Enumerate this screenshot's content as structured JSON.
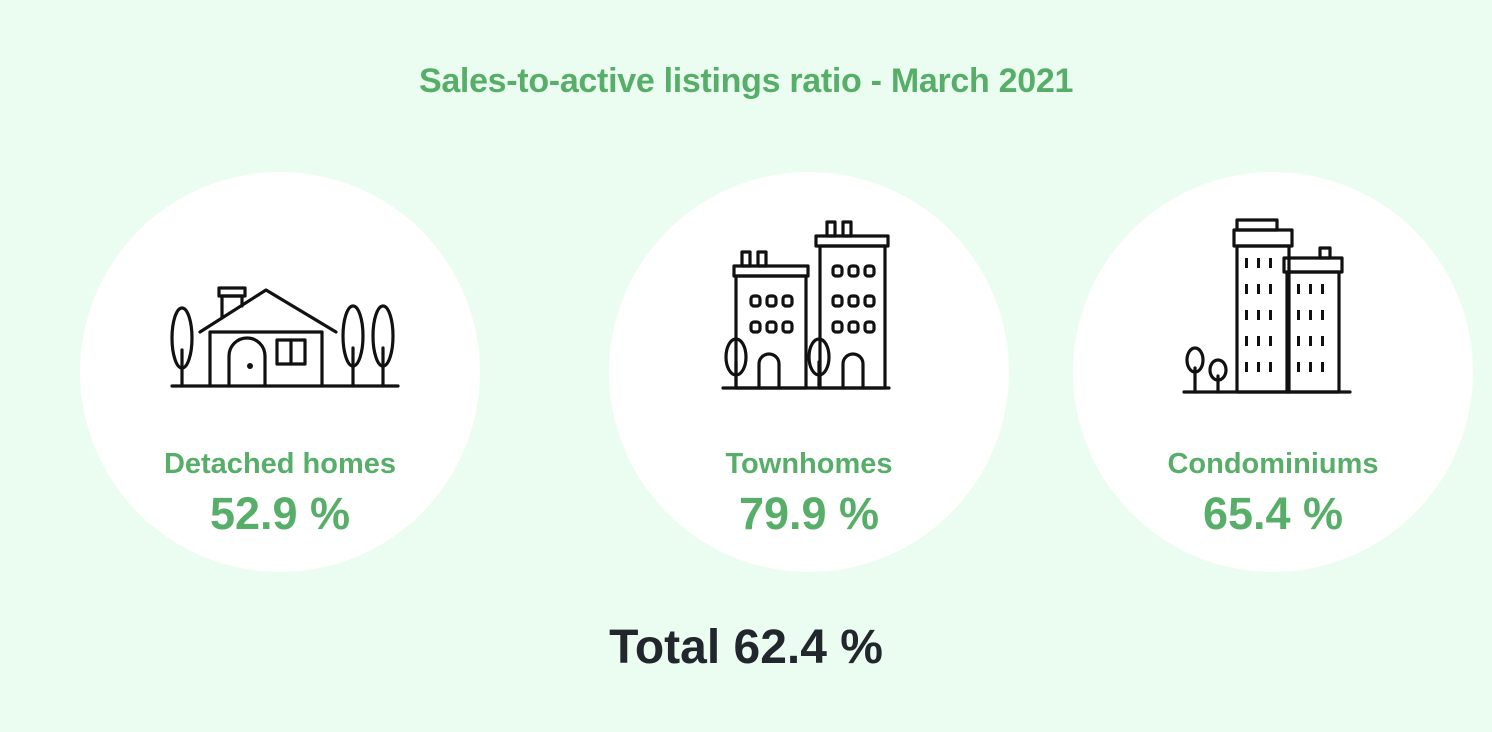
{
  "title": "Sales-to-active listings ratio - March 2021",
  "cards": [
    {
      "label": "Detached homes",
      "value": "52.9 %",
      "icon": "house-icon"
    },
    {
      "label": "Townhomes",
      "value": "79.9 %",
      "icon": "townhouse-buildings-icon"
    },
    {
      "label": "Condominiums",
      "value": "65.4 %",
      "icon": "condo-tower-icon"
    }
  ],
  "total": "Total 62.4 %",
  "colors": {
    "background": "#ebfdf0",
    "accent": "#57ae68",
    "card": "#ffffff",
    "total_text": "#22272d",
    "icon_stroke": "#111111"
  }
}
